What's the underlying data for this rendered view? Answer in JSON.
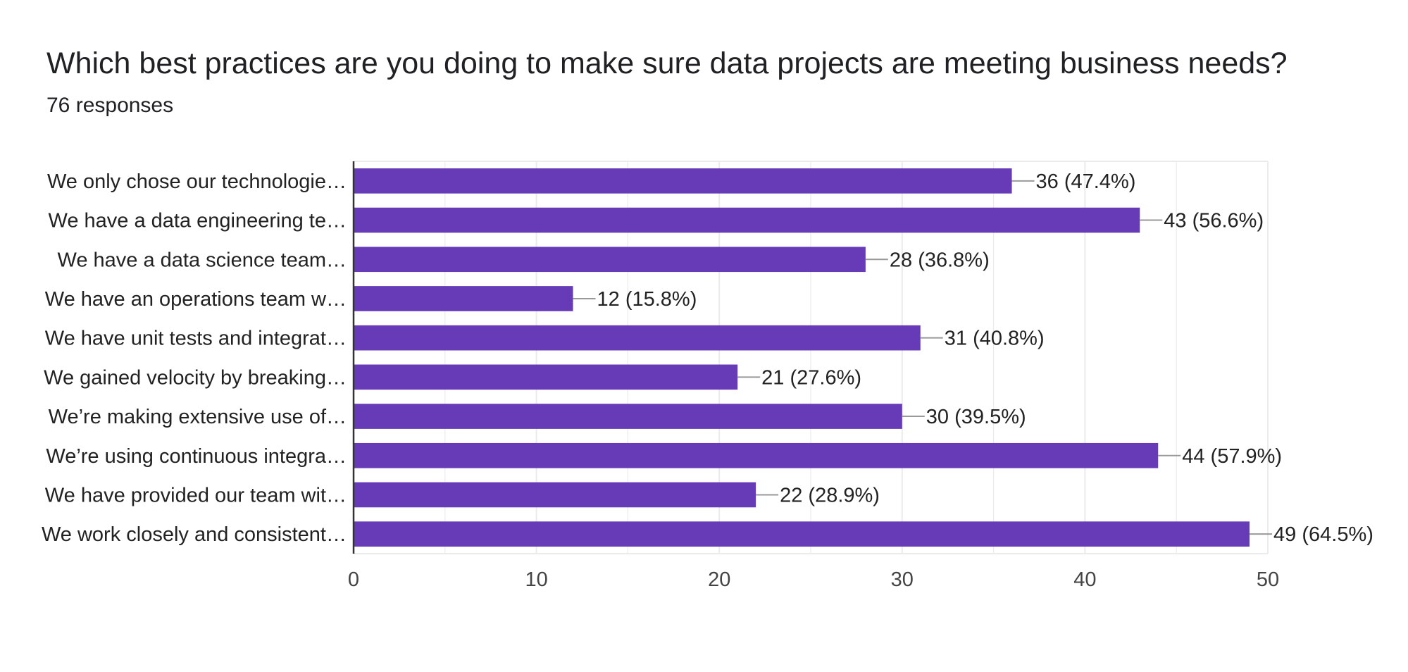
{
  "header": {
    "title": "Which best practices are you doing to make sure data projects are meeting business needs?",
    "subtitle": "76 responses"
  },
  "colors": {
    "bar": "#673ab7",
    "grid": "#ebebeb",
    "axis": "#333333",
    "leader": "#999999"
  },
  "chart_data": {
    "type": "bar",
    "orientation": "horizontal",
    "title": "Which best practices are you doing to make sure data projects are meeting business needs?",
    "subtitle": "76 responses",
    "categories": [
      "We only chose our technologie…",
      "We have a data engineering te…",
      "We have a data science team…",
      "We have an operations team w…",
      "We have unit tests and integrat…",
      "We gained velocity by breaking…",
      "We’re making extensive use of…",
      "We’re using continuous integra…",
      "We have provided our team wit…",
      "We work closely and consistent…"
    ],
    "values": [
      36,
      43,
      28,
      12,
      31,
      21,
      30,
      44,
      22,
      49
    ],
    "data_labels": [
      "36 (47.4%)",
      "43 (56.6%)",
      "28 (36.8%)",
      "12 (15.8%)",
      "31 (40.8%)",
      "21 (27.6%)",
      "30 (39.5%)",
      "44 (57.9%)",
      "22 (28.9%)",
      "49 (64.5%)"
    ],
    "xlim": [
      0,
      50
    ],
    "xticks": [
      0,
      10,
      20,
      30,
      40,
      50
    ],
    "grid": true,
    "legend": "none"
  }
}
